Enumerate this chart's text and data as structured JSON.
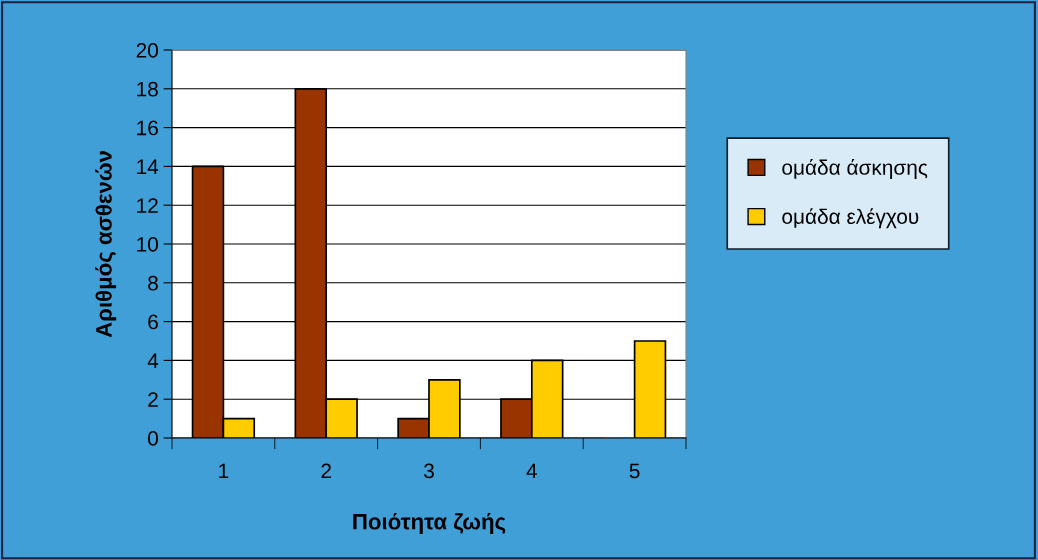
{
  "chart_data": {
    "type": "bar",
    "xlabel": "Ποιότητα ζωής",
    "ylabel": "Αριθμός ασθενών",
    "categories": [
      "1",
      "2",
      "3",
      "4",
      "5"
    ],
    "series": [
      {
        "name": "ομάδα άσκησης",
        "color": "#993300",
        "values": [
          14,
          18,
          1,
          2,
          0
        ]
      },
      {
        "name": "ομάδα ελέγχου",
        "color": "#ffcc00",
        "values": [
          1,
          2,
          3,
          4,
          5
        ]
      }
    ],
    "ylim": [
      0,
      20
    ],
    "yticks": [
      0,
      2,
      4,
      6,
      8,
      10,
      12,
      14,
      16,
      18,
      20
    ],
    "grid": "y",
    "legend": "right"
  }
}
